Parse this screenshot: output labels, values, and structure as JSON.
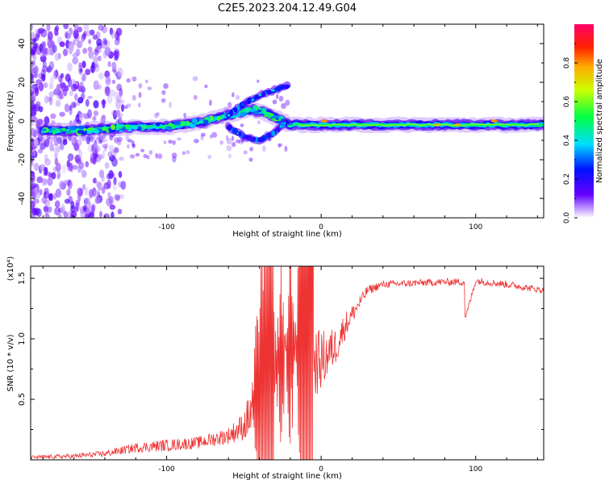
{
  "title": "C2E5.2023.204.12.49.G04",
  "colors": {
    "snr_line": "#ee3333",
    "axis": "#000000"
  },
  "chart_data": [
    {
      "type": "heatmap",
      "xlabel": "Height of straight line (km)",
      "ylabel": "Frequency (Hz)",
      "xlim": [
        -188,
        144
      ],
      "ylim": [
        -50,
        50
      ],
      "x_ticks": [
        -100,
        0,
        100
      ],
      "x_tick_labels": [
        "-100",
        "0",
        "100"
      ],
      "y_ticks": [
        40,
        20,
        0,
        -20,
        -40
      ],
      "y_tick_labels": [
        "40",
        "20",
        "0",
        "-20",
        "-40"
      ],
      "colorbar": {
        "label": "Normalized spectral amplitude",
        "range": [
          0,
          1
        ],
        "ticks": [
          0.0,
          0.2,
          0.4,
          0.6,
          0.8
        ],
        "tick_labels": [
          "0.0",
          "0.2",
          "0.4",
          "0.6",
          "0.8"
        ],
        "colormap": "rainbow (purple to red)"
      },
      "ridge": {
        "x": [
          -180,
          -160,
          -140,
          -120,
          -100,
          -80,
          -60,
          -45,
          -35,
          -25,
          -20,
          -15,
          0,
          20,
          50,
          80,
          100,
          120,
          144
        ],
        "freq": [
          -5,
          -5,
          -4,
          -3,
          -3,
          -1,
          3,
          6,
          4,
          0,
          -2,
          -2,
          -2,
          -2,
          -2,
          -2,
          -2,
          -2,
          -2
        ]
      },
      "branches": [
        {
          "x": [
            -60,
            -50,
            -40,
            -30,
            -22
          ],
          "freq": [
            3,
            9,
            13,
            16,
            18
          ]
        },
        {
          "x": [
            -60,
            -50,
            -40,
            -30,
            -22
          ],
          "freq": [
            -3,
            -8,
            -10,
            -6,
            0
          ]
        }
      ],
      "hotspots": [
        {
          "x": 2,
          "freq": 0
        },
        {
          "x": 75,
          "freq": -2
        },
        {
          "x": 88,
          "freq": -2
        },
        {
          "x": 112,
          "freq": 0
        }
      ]
    },
    {
      "type": "line",
      "xlabel": "Height of straight line (km)",
      "ylabel": "SNR (10 * v/v)",
      "y_multiplier": "(x10⁴)",
      "xlim": [
        -188,
        144
      ],
      "ylim": [
        0,
        16000
      ],
      "x_ticks": [
        -100,
        0,
        100
      ],
      "x_tick_labels": [
        "-100",
        "0",
        "100"
      ],
      "y_ticks": [
        5000,
        10000,
        15000
      ],
      "y_tick_labels": [
        "0.5",
        "1.0",
        "1.5"
      ],
      "series": [
        {
          "x": [
            -188,
            -160,
            -140,
            -120,
            -100,
            -80,
            -60,
            -50,
            -45,
            -40,
            -30,
            -20,
            -10,
            -5,
            0,
            10,
            15,
            20,
            30,
            40,
            60,
            80,
            93,
            94,
            100,
            120,
            144
          ],
          "y": [
            200,
            300,
            500,
            1000,
            1200,
            1400,
            2000,
            2800,
            4000,
            5000,
            7000,
            8500,
            9000,
            8000,
            8200,
            9500,
            11000,
            12000,
            14000,
            14500,
            14600,
            14700,
            14700,
            12000,
            14800,
            14500,
            14000
          ],
          "noise_amplitude": [
            150,
            200,
            250,
            400,
            500,
            500,
            700,
            1200,
            2500,
            3500,
            4000,
            4500,
            4000,
            3000,
            2500,
            1500,
            1200,
            800,
            400,
            300,
            300,
            300,
            300,
            300,
            300,
            300,
            250
          ]
        }
      ]
    }
  ]
}
